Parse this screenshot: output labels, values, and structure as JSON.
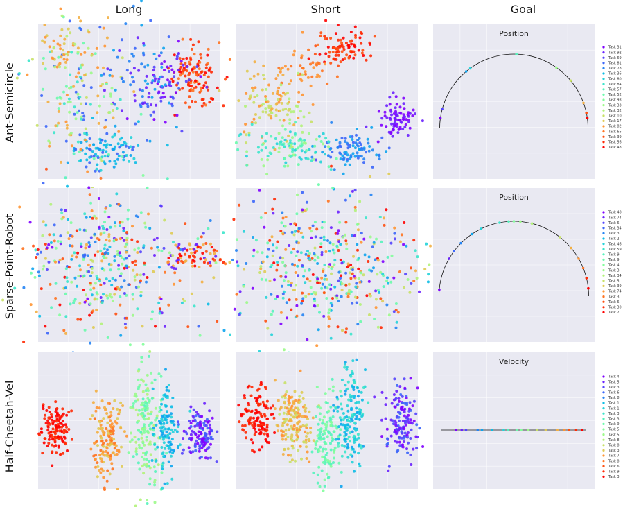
{
  "columns": [
    "Long",
    "Short",
    "Goal"
  ],
  "rows": [
    "Ant-Semicircle",
    "Sparse-Point-Robot",
    "Half-Cheetah-Vel"
  ],
  "goal_titles": [
    "Position",
    "Position",
    "Velocity"
  ],
  "legends": [
    [
      "Task 31",
      "Task 92",
      "Task 69",
      "Task 81",
      "Task 78",
      "Task 36",
      "Task 80",
      "Task 84",
      "Task 57",
      "Task 52",
      "Task 93",
      "Task 33",
      "Task 32",
      "Task 10",
      "Task 17",
      "Task 82",
      "Task 65",
      "Task 39",
      "Task 56",
      "Task 48"
    ],
    [
      "Task 48",
      "Task 74",
      "Task 6",
      "Task 34",
      "Task 3",
      "Task 2",
      "Task 46",
      "Task 59",
      "Task 9",
      "Task 9",
      "Task 4",
      "Task 3",
      "Task 34",
      "Task 5",
      "Task 39",
      "Task 74",
      "Task 3",
      "Task 6",
      "Task 30",
      "Task 2"
    ],
    [
      "Task 4",
      "Task 5",
      "Task 3",
      "Task 6",
      "Task 8",
      "Task 1",
      "Task 1",
      "Task 3",
      "Task 3",
      "Task 9",
      "Task 5",
      "Task 5",
      "Task 8",
      "Task 8",
      "Task 3",
      "Task 7",
      "Task 8",
      "Task 6",
      "Task 9",
      "Task 3"
    ]
  ],
  "colors": [
    "#8000ff",
    "#6a21fe",
    "#5444fd",
    "#3c66f9",
    "#2584f4",
    "#0ea4ee",
    "#0cbde5",
    "#25d3d9",
    "#3ce5cb",
    "#56f3bc",
    "#6cfbac",
    "#83fe9c",
    "#9cfa89",
    "#b2f27a",
    "#c8e168",
    "#dfcb55",
    "#f3af43",
    "#ff9533",
    "#ff7320",
    "#ff4f10",
    "#ff2a04",
    "#ff0000"
  ],
  "chart_data": [
    {
      "type": "scatter",
      "title": "",
      "row": "Ant-Semicircle",
      "column": "Long",
      "note": "t-SNE embedding, ~20 task clusters colored by task"
    },
    {
      "type": "scatter",
      "title": "",
      "row": "Ant-Semicircle",
      "column": "Short",
      "note": "t-SNE embedding"
    },
    {
      "type": "scatter",
      "title": "Position",
      "row": "Ant-Semicircle",
      "column": "Goal",
      "goal_shape": "semicircle",
      "goal_angles_deg": [
        172,
        165,
        130,
        126,
        88,
        55,
        40,
        20,
        12,
        8
      ]
    },
    {
      "type": "scatter",
      "title": "",
      "row": "Sparse-Point-Robot",
      "column": "Long",
      "note": "t-SNE embedding"
    },
    {
      "type": "scatter",
      "title": "",
      "row": "Sparse-Point-Robot",
      "column": "Short",
      "note": "t-SNE embedding"
    },
    {
      "type": "scatter",
      "title": "Position",
      "row": "Sparse-Point-Robot",
      "column": "Goal",
      "goal_shape": "semicircle",
      "goal_angles_deg": [
        175,
        150,
        143,
        135,
        124,
        116,
        101,
        94,
        90,
        85,
        76,
        52,
        40,
        30,
        22,
        14,
        6
      ]
    },
    {
      "type": "scatter",
      "title": "",
      "row": "Half-Cheetah-Vel",
      "column": "Long",
      "note": "t-SNE embedding, vertical clusters"
    },
    {
      "type": "scatter",
      "title": "",
      "row": "Half-Cheetah-Vel",
      "column": "Short",
      "note": "t-SNE embedding, vertical clusters"
    },
    {
      "type": "scatter",
      "title": "Velocity",
      "row": "Half-Cheetah-Vel",
      "column": "Goal",
      "goal_shape": "line",
      "goal_positions": [
        0.1,
        0.14,
        0.17,
        0.25,
        0.28,
        0.35,
        0.43,
        0.46,
        0.52,
        0.55,
        0.6,
        0.66,
        0.72,
        0.8,
        0.85,
        0.88,
        0.93,
        0.97
      ]
    }
  ]
}
